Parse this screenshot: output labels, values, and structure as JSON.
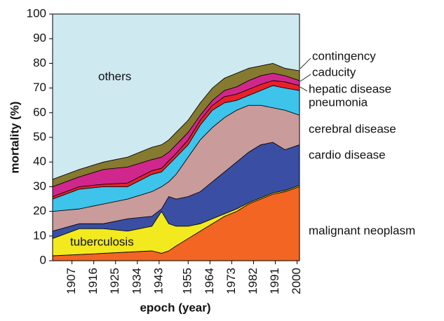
{
  "chart_data": {
    "type": "stacked_area",
    "x_label": "epoch (year)",
    "y_label": "mortality (%)",
    "x": [
      1899,
      1910,
      1920,
      1930,
      1940,
      1944,
      1947,
      1950,
      1955,
      1960,
      1965,
      1970,
      1975,
      1980,
      1985,
      1990,
      1995,
      2001
    ],
    "xlim": [
      1899,
      2001
    ],
    "xticks": [
      1907,
      1916,
      1925,
      1934,
      1943,
      1955,
      1964,
      1973,
      1982,
      1991,
      2000
    ],
    "ylim": [
      0,
      100
    ],
    "yticks": [
      0,
      10,
      20,
      30,
      40,
      50,
      60,
      70,
      80,
      90,
      100
    ],
    "grid": false,
    "series": [
      {
        "name": "malignant neoplasm",
        "color": "#f26522",
        "values": [
          2,
          2.5,
          3,
          3.5,
          4,
          3,
          4,
          6,
          9,
          12,
          15,
          18,
          20,
          23,
          25,
          27,
          28,
          30
        ]
      },
      {
        "name": "tuberculosis",
        "color": "#f2ea1e",
        "values": [
          7,
          10.5,
          10,
          8.5,
          10,
          17,
          11,
          8,
          5,
          3,
          2,
          1,
          1,
          0.5,
          0.5,
          0.5,
          0.5,
          0.5
        ]
      },
      {
        "name": "cardio disease",
        "color": "#3a4fa3",
        "values": [
          3,
          2,
          2,
          5,
          4,
          1,
          11,
          11,
          12,
          13,
          15,
          17,
          19,
          20.5,
          21.5,
          20.5,
          16.5,
          16.5
        ]
      },
      {
        "name": "cerebral disease",
        "color": "#c99b9b",
        "values": [
          8,
          6,
          8,
          8,
          10,
          9,
          6,
          10,
          16,
          21,
          22,
          22,
          21,
          19,
          16,
          14,
          16,
          12
        ]
      },
      {
        "name": "pneumonia",
        "color": "#3ec3ea",
        "values": [
          5,
          8,
          7,
          5,
          7,
          6,
          7,
          7,
          5,
          6,
          7,
          6,
          4,
          4,
          6,
          9,
          9,
          10
        ]
      },
      {
        "name": "hepatic disease",
        "color": "#e8202a",
        "values": [
          1,
          1,
          1,
          1.5,
          1.5,
          1.5,
          1.5,
          1.5,
          2,
          2,
          2,
          2.5,
          2.5,
          2.5,
          2.5,
          2,
          2.5,
          2
        ]
      },
      {
        "name": "caducity",
        "color": "#d0278c",
        "values": [
          4,
          4,
          6,
          6.5,
          4.5,
          4.5,
          3.5,
          3.5,
          3,
          2,
          2,
          2.5,
          3,
          3.5,
          3.5,
          3,
          2.5,
          2
        ]
      },
      {
        "name": "contingency",
        "color": "#857a30",
        "values": [
          3,
          3,
          3,
          4,
          5,
          5,
          5,
          5,
          5,
          5,
          5,
          5,
          5.5,
          5,
          4,
          4,
          3,
          4
        ]
      },
      {
        "name": "others",
        "color": "#cfe9f0",
        "values": [
          67,
          63,
          60,
          58,
          54,
          53,
          51,
          48,
          43,
          36,
          30,
          26,
          24,
          22,
          21,
          20,
          22,
          23
        ]
      }
    ]
  }
}
